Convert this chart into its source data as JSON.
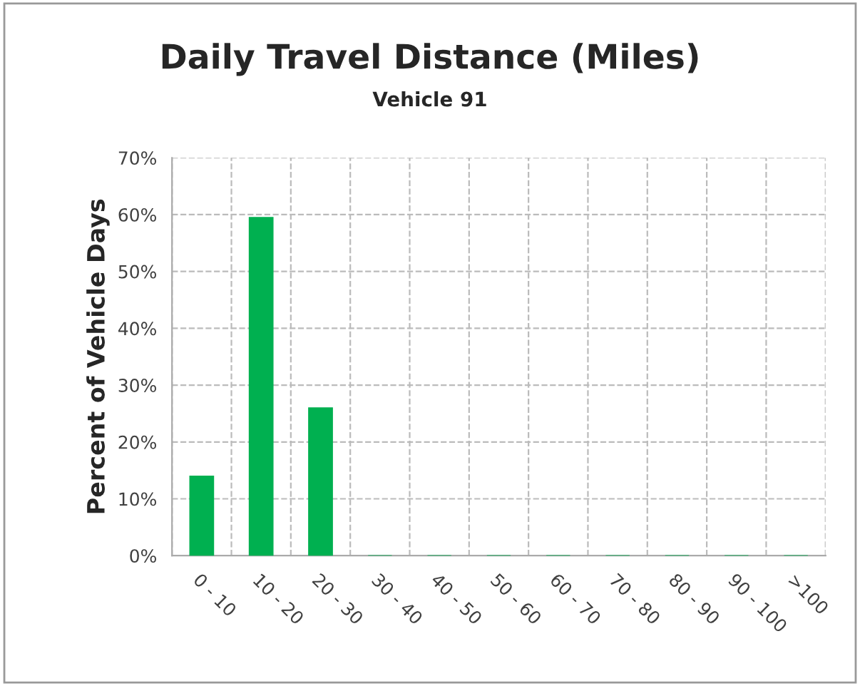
{
  "chart_data": {
    "type": "bar",
    "title": "Daily Travel Distance (Miles)",
    "subtitle": "Vehicle 91",
    "ylabel": "Percent of Vehicle Days",
    "categories": [
      "0 - 10",
      "10 - 20",
      "20 - 30",
      "30 - 40",
      "40 - 50",
      "50 - 60",
      "60 - 70",
      "70 - 80",
      "80 - 90",
      "90 - 100",
      ">100"
    ],
    "values": [
      14,
      59.5,
      26,
      0,
      0,
      0,
      0,
      0,
      0,
      0,
      0
    ],
    "color": "#00b050",
    "ylim": [
      0,
      70
    ],
    "yticks": [
      {
        "value": 0,
        "label": "0%"
      },
      {
        "value": 10,
        "label": "10%"
      },
      {
        "value": 20,
        "label": "20%"
      },
      {
        "value": 30,
        "label": "30%"
      },
      {
        "value": 40,
        "label": "40%"
      },
      {
        "value": 50,
        "label": "50%"
      },
      {
        "value": 60,
        "label": "60%"
      },
      {
        "value": 70,
        "label": "70%"
      }
    ],
    "grid": true,
    "legend": false
  }
}
